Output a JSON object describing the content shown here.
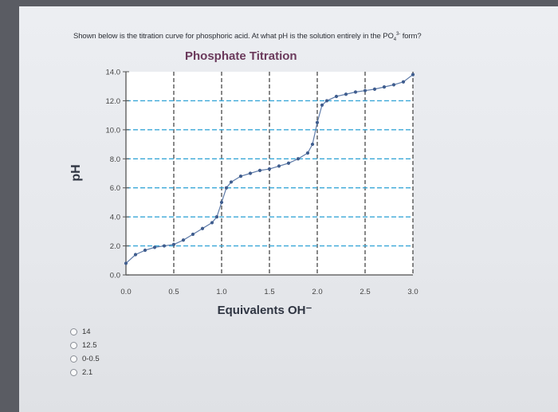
{
  "question": {
    "text_before": "Shown below is the titration curve for phosphoric acid. At what pH is the solution entirely in the PO",
    "sub": "4",
    "sup": "3-",
    "text_after": " form?"
  },
  "options": [
    {
      "label": "14"
    },
    {
      "label": "12.5"
    },
    {
      "label": "0-0.5"
    },
    {
      "label": "2.1"
    }
  ],
  "chart_data": {
    "type": "scatter",
    "title": "Phosphate Titration",
    "xlabel": "Equivalents OH⁻",
    "ylabel": "pH",
    "xlim": [
      0,
      3
    ],
    "ylim": [
      0,
      14
    ],
    "x_ticks": [
      "0.0",
      "0.5",
      "1.0",
      "1.5",
      "2.0",
      "2.5",
      "3.0"
    ],
    "y_ticks": [
      "0.0",
      "2.0",
      "4.0",
      "6.0",
      "8.0",
      "10.0",
      "12.0",
      "14.0"
    ],
    "grid": true,
    "colors": {
      "points": "#3f5d8e",
      "grid_horizontal": "#3aa7d8",
      "grid_vertical": "#555555"
    },
    "x": [
      0.0,
      0.1,
      0.2,
      0.3,
      0.4,
      0.5,
      0.6,
      0.7,
      0.8,
      0.9,
      0.95,
      1.0,
      1.05,
      1.1,
      1.2,
      1.3,
      1.4,
      1.5,
      1.6,
      1.7,
      1.8,
      1.9,
      1.95,
      2.0,
      2.05,
      2.1,
      2.2,
      2.3,
      2.4,
      2.5,
      2.6,
      2.7,
      2.8,
      2.9,
      3.0
    ],
    "y": [
      0.8,
      1.4,
      1.7,
      1.9,
      2.0,
      2.1,
      2.4,
      2.8,
      3.2,
      3.6,
      4.0,
      5.0,
      6.0,
      6.4,
      6.8,
      7.0,
      7.2,
      7.3,
      7.5,
      7.7,
      8.0,
      8.4,
      9.0,
      10.5,
      11.7,
      12.0,
      12.3,
      12.45,
      12.6,
      12.7,
      12.8,
      12.95,
      13.1,
      13.3,
      13.8
    ]
  }
}
